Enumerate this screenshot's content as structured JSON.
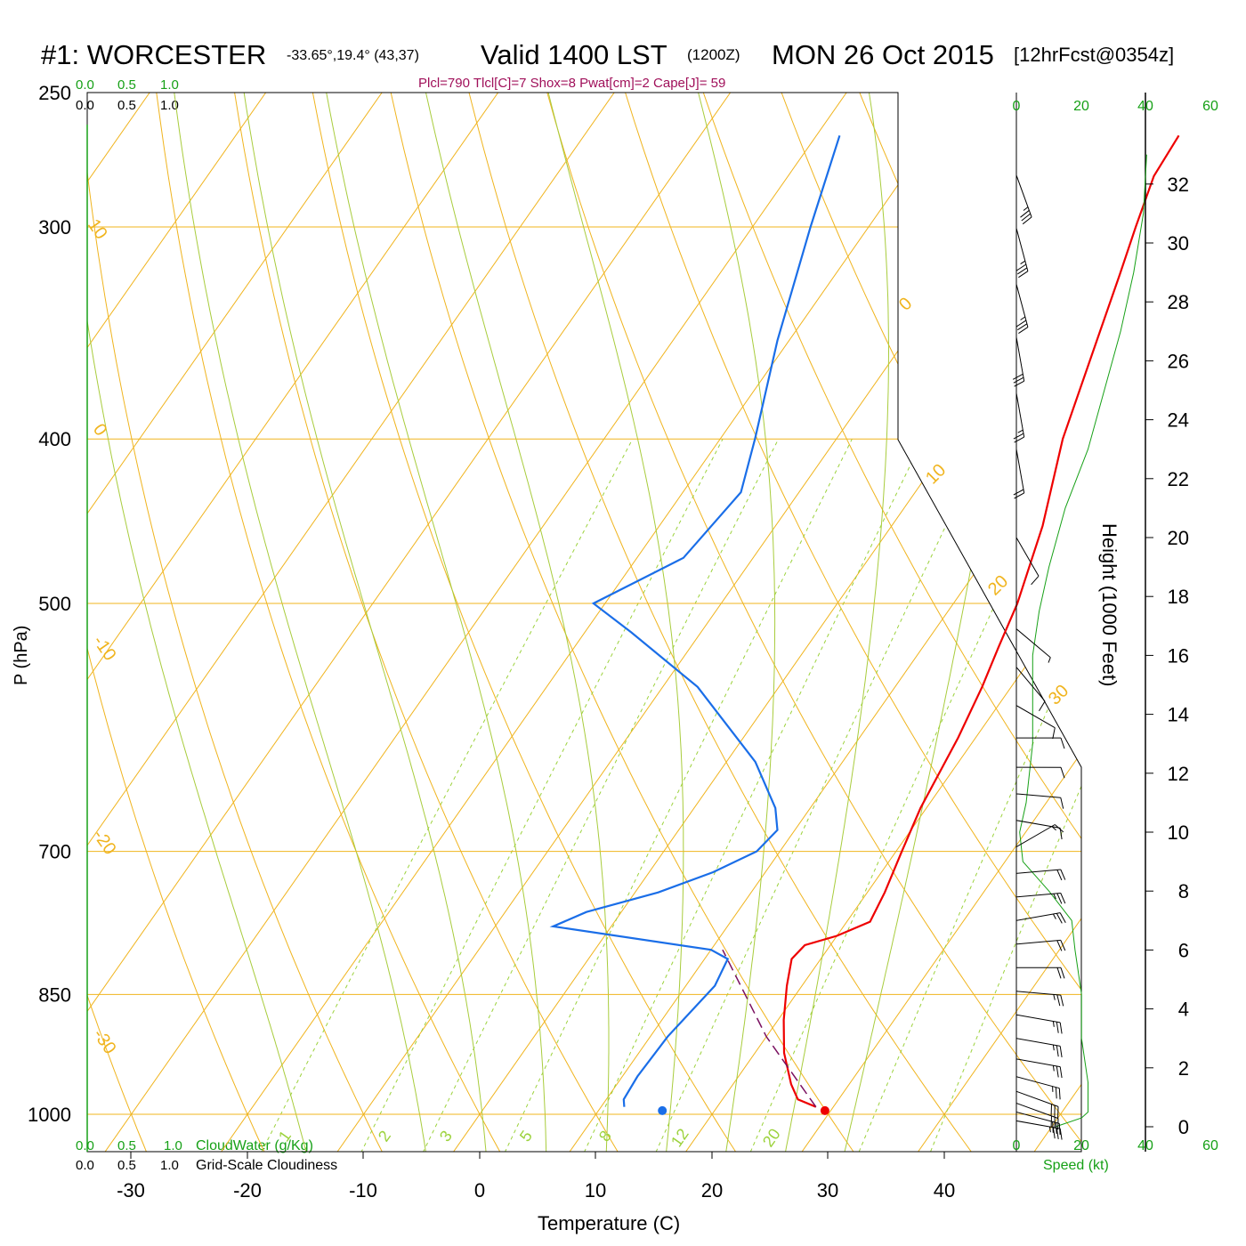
{
  "header": {
    "station": "#1: WORCESTER",
    "coords": "-33.65°,19.4° (43,37)",
    "valid": "Valid 1400 LST",
    "zulu": "(1200Z)",
    "date": "MON 26 Oct 2015",
    "fcst": "[12hrFcst@0354z]",
    "indices": "Plcl=790 Tlcl[C]=7 Shox=8 Pwat[cm]=2 Cape[J]= 59"
  },
  "colors": {
    "temperature": "#ee0000",
    "dewpoint": "#1a6ee8",
    "isobar": "#f0b41e",
    "dry_adiabat": "#f0b41e",
    "moist_adiabat": "#a8cc3c",
    "mixing_ratio": "#9cd23c",
    "parcel": "#7a1060",
    "green_text": "#16a016",
    "indices_text": "#a0105a"
  },
  "scales": {
    "top_green": [
      "0.0",
      "0.5",
      "1.0"
    ],
    "top_black": [
      "0.0",
      "0.5",
      "1.0"
    ],
    "bottom_green": [
      "0.0",
      "0.5",
      "1.0"
    ],
    "bottom_black": [
      "0.0",
      "0.5",
      "1.0"
    ],
    "cloudwater_label": "CloudWater (g/Kg)",
    "cloudiness_label": "Grid-Scale Cloudiness"
  },
  "wind_axis": {
    "top_ticks": [
      "0",
      "20",
      "40",
      "60"
    ],
    "bottom_ticks": [
      "0",
      "20",
      "40",
      "60"
    ],
    "label": "Speed (kt)"
  },
  "chart_data": {
    "type": "skew-t log-p sounding",
    "xlabel": "Temperature (C)",
    "ylabel": "P (hPa)",
    "y2label": "Height (1000 Feet)",
    "x_ticks": [
      -30,
      -20,
      -10,
      0,
      10,
      20,
      30,
      40
    ],
    "p_ticks": [
      250,
      300,
      400,
      500,
      700,
      850,
      1000
    ],
    "height_ticks": [
      0,
      2,
      4,
      6,
      8,
      10,
      12,
      14,
      16,
      18,
      20,
      22,
      24,
      26,
      28,
      30,
      32
    ],
    "dry_adiabat_labels": [
      "10",
      "0",
      "-10",
      "-20",
      "-30",
      "0",
      "10",
      "20",
      "30"
    ],
    "mixing_ratio_labels": [
      "1",
      "2",
      "3",
      "5",
      "8",
      "12",
      "20"
    ],
    "temperature_profile": [
      {
        "p": 990,
        "t": 28.5
      },
      {
        "p": 980,
        "t": 26.5
      },
      {
        "p": 960,
        "t": 25.0
      },
      {
        "p": 920,
        "t": 22.5
      },
      {
        "p": 880,
        "t": 20.5
      },
      {
        "p": 840,
        "t": 18.7
      },
      {
        "p": 810,
        "t": 17.5
      },
      {
        "p": 795,
        "t": 17.8
      },
      {
        "p": 785,
        "t": 20.0
      },
      {
        "p": 770,
        "t": 22.0
      },
      {
        "p": 740,
        "t": 21.5
      },
      {
        "p": 700,
        "t": 20.5
      },
      {
        "p": 660,
        "t": 19.5
      },
      {
        "p": 600,
        "t": 18.5
      },
      {
        "p": 560,
        "t": 17.5
      },
      {
        "p": 530,
        "t": 16.5
      },
      {
        "p": 500,
        "t": 15.5
      },
      {
        "p": 450,
        "t": 13.0
      },
      {
        "p": 400,
        "t": 9.5
      },
      {
        "p": 350,
        "t": 6.5
      },
      {
        "p": 320,
        "t": 4.5
      },
      {
        "p": 300,
        "t": 3.0
      },
      {
        "p": 280,
        "t": 1.5
      },
      {
        "p": 265,
        "t": 1.2
      }
    ],
    "dewpoint_profile": [
      {
        "p": 990,
        "t": 12.0
      },
      {
        "p": 980,
        "t": 11.5
      },
      {
        "p": 950,
        "t": 11.3
      },
      {
        "p": 900,
        "t": 11.5
      },
      {
        "p": 840,
        "t": 12.5
      },
      {
        "p": 810,
        "t": 12.0
      },
      {
        "p": 800,
        "t": 10.0
      },
      {
        "p": 775,
        "t": -5.0
      },
      {
        "p": 760,
        "t": -3.0
      },
      {
        "p": 740,
        "t": 2.0
      },
      {
        "p": 720,
        "t": 5.5
      },
      {
        "p": 700,
        "t": 8.0
      },
      {
        "p": 680,
        "t": 8.5
      },
      {
        "p": 660,
        "t": 7.0
      },
      {
        "p": 620,
        "t": 2.5
      },
      {
        "p": 560,
        "t": -7.0
      },
      {
        "p": 520,
        "t": -16.0
      },
      {
        "p": 500,
        "t": -21.0
      },
      {
        "p": 470,
        "t": -16.0
      },
      {
        "p": 430,
        "t": -15.0
      },
      {
        "p": 400,
        "t": -17.0
      },
      {
        "p": 350,
        "t": -21.0
      },
      {
        "p": 300,
        "t": -25.0
      },
      {
        "p": 265,
        "t": -28.0
      }
    ],
    "parcel_profile": [
      {
        "p": 990,
        "t": 28.5
      },
      {
        "p": 900,
        "t": 20.0
      },
      {
        "p": 800,
        "t": 11.0
      }
    ],
    "surface_temperature_c": 29.5,
    "surface_dewpoint_c": 15.5,
    "surface_pressure_hpa": 995,
    "wind_barbs": [
      {
        "h": 0.2,
        "spd": 35,
        "dir": 100
      },
      {
        "h": 0.5,
        "spd": 30,
        "dir": 105
      },
      {
        "h": 0.8,
        "spd": 30,
        "dir": 110
      },
      {
        "h": 1.2,
        "spd": 30,
        "dir": 110
      },
      {
        "h": 1.7,
        "spd": 25,
        "dir": 105
      },
      {
        "h": 2.3,
        "spd": 25,
        "dir": 100
      },
      {
        "h": 3.0,
        "spd": 25,
        "dir": 100
      },
      {
        "h": 3.8,
        "spd": 25,
        "dir": 100
      },
      {
        "h": 4.6,
        "spd": 25,
        "dir": 95
      },
      {
        "h": 5.4,
        "spd": 20,
        "dir": 90
      },
      {
        "h": 6.2,
        "spd": 20,
        "dir": 85
      },
      {
        "h": 7.0,
        "spd": 25,
        "dir": 80
      },
      {
        "h": 7.8,
        "spd": 25,
        "dir": 85
      },
      {
        "h": 8.6,
        "spd": 20,
        "dir": 85
      },
      {
        "h": 9.5,
        "spd": 15,
        "dir": 60
      },
      {
        "h": 10.4,
        "spd": 10,
        "dir": 100
      },
      {
        "h": 11.3,
        "spd": 10,
        "dir": 95
      },
      {
        "h": 12.2,
        "spd": 10,
        "dir": 90
      },
      {
        "h": 13.2,
        "spd": 10,
        "dir": 90
      },
      {
        "h": 14.3,
        "spd": 10,
        "dir": 120
      },
      {
        "h": 15.6,
        "spd": 10,
        "dir": 140
      },
      {
        "h": 16.9,
        "spd": 5,
        "dir": 130
      },
      {
        "h": 20.0,
        "spd": 10,
        "dir": 150
      },
      {
        "h": 23.0,
        "spd": 20,
        "dir": 170
      },
      {
        "h": 24.9,
        "spd": 25,
        "dir": 170
      },
      {
        "h": 26.8,
        "spd": 30,
        "dir": 170
      },
      {
        "h": 28.6,
        "spd": 35,
        "dir": 165
      },
      {
        "h": 30.5,
        "spd": 35,
        "dir": 165
      },
      {
        "h": 32.3,
        "spd": 35,
        "dir": 160
      }
    ],
    "speed_profile": [
      {
        "h": 0.0,
        "spd": 12
      },
      {
        "h": 0.3,
        "spd": 20
      },
      {
        "h": 0.5,
        "spd": 22
      },
      {
        "h": 1.5,
        "spd": 22
      },
      {
        "h": 3.0,
        "spd": 20
      },
      {
        "h": 4.5,
        "spd": 20
      },
      {
        "h": 6.0,
        "spd": 18
      },
      {
        "h": 7.0,
        "spd": 17
      },
      {
        "h": 8.0,
        "spd": 10
      },
      {
        "h": 9.0,
        "spd": 2
      },
      {
        "h": 10.0,
        "spd": 1
      },
      {
        "h": 11.0,
        "spd": 3
      },
      {
        "h": 13.0,
        "spd": 5
      },
      {
        "h": 15.0,
        "spd": 5
      },
      {
        "h": 16.0,
        "spd": 5
      },
      {
        "h": 17.5,
        "spd": 7
      },
      {
        "h": 19.0,
        "spd": 10
      },
      {
        "h": 21.0,
        "spd": 15
      },
      {
        "h": 23.0,
        "spd": 22
      },
      {
        "h": 25.0,
        "spd": 27
      },
      {
        "h": 27.0,
        "spd": 32
      },
      {
        "h": 29.0,
        "spd": 36
      },
      {
        "h": 31.0,
        "spd": 39
      },
      {
        "h": 33.0,
        "spd": 40
      }
    ]
  }
}
